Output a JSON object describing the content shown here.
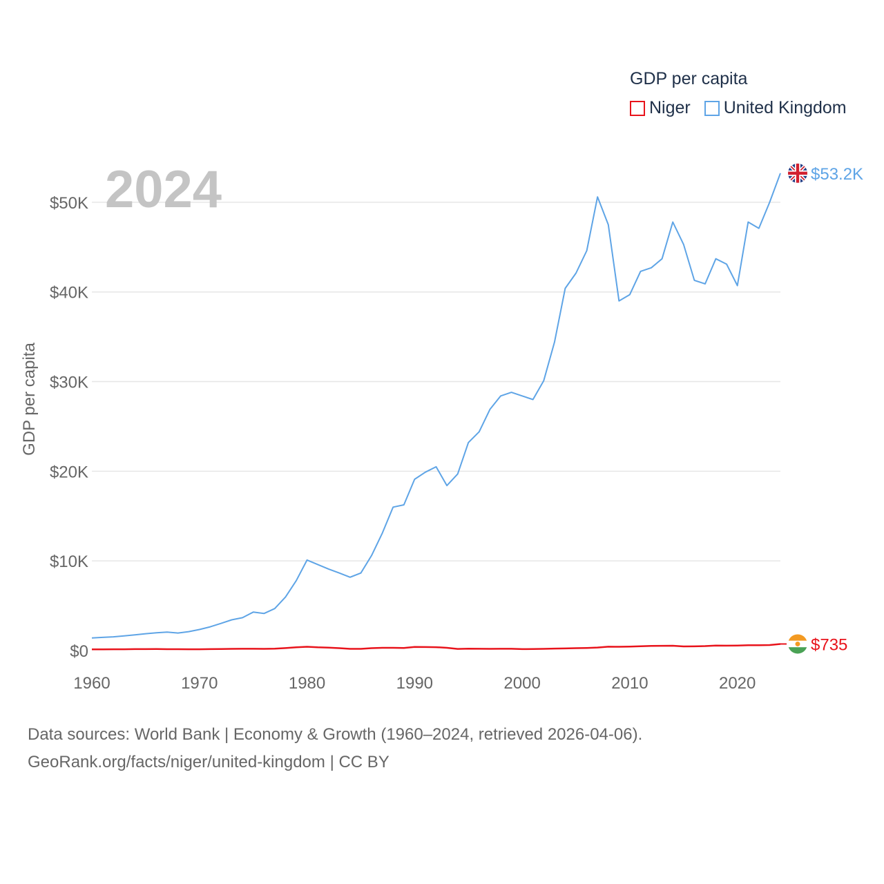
{
  "colors": {
    "niger": "#e8131b",
    "uk": "#5ea4e6",
    "grid": "#e6e6e6",
    "tick": "#666666"
  },
  "legend": {
    "title": "GDP per capita",
    "items": [
      {
        "label": "Niger",
        "color": "#e8131b"
      },
      {
        "label": "United Kingdom",
        "color": "#5ea4e6"
      }
    ]
  },
  "year_label": "2024",
  "footer": {
    "line1": "Data sources: World Bank | Economy & Growth (1960–2024, retrieved 2026-04-06).",
    "line2": "GeoRank.org/facts/niger/united-kingdom | CC BY"
  },
  "chart_data": {
    "type": "line",
    "title": "GDP per capita",
    "xlabel": "",
    "ylabel": "GDP per capita",
    "xlim": [
      1960,
      2024
    ],
    "ylim": [
      0,
      55000
    ],
    "x_ticks": [
      1960,
      1970,
      1980,
      1990,
      2000,
      2010,
      2020
    ],
    "x_tick_labels": [
      "1960",
      "1970",
      "1980",
      "1990",
      "2000",
      "2010",
      "2020"
    ],
    "y_ticks": [
      0,
      10000,
      20000,
      30000,
      40000,
      50000
    ],
    "y_tick_labels": [
      "$0",
      "$10K",
      "$20K",
      "$30K",
      "$40K",
      "$50K"
    ],
    "x": [
      1960,
      1961,
      1962,
      1963,
      1964,
      1965,
      1966,
      1967,
      1968,
      1969,
      1970,
      1971,
      1972,
      1973,
      1974,
      1975,
      1976,
      1977,
      1978,
      1979,
      1980,
      1981,
      1982,
      1983,
      1984,
      1985,
      1986,
      1987,
      1988,
      1989,
      1990,
      1991,
      1992,
      1993,
      1994,
      1995,
      1996,
      1997,
      1998,
      1999,
      2000,
      2001,
      2002,
      2003,
      2004,
      2005,
      2006,
      2007,
      2008,
      2009,
      2010,
      2011,
      2012,
      2013,
      2014,
      2015,
      2016,
      2017,
      2018,
      2019,
      2020,
      2021,
      2022,
      2023,
      2024
    ],
    "series": [
      {
        "name": "United Kingdom",
        "end_label": "$53.2K",
        "values": [
          1400,
          1470,
          1530,
          1640,
          1760,
          1880,
          1990,
          2060,
          1960,
          2110,
          2350,
          2650,
          3030,
          3430,
          3670,
          4290,
          4140,
          4680,
          5980,
          7800,
          10100,
          9600,
          9100,
          8650,
          8180,
          8650,
          10600,
          13100,
          16000,
          16250,
          19100,
          19900,
          20500,
          18400,
          19700,
          23200,
          24400,
          26900,
          28400,
          28800,
          28400,
          28000,
          30100,
          34400,
          40400,
          42100,
          44600,
          50600,
          47500,
          39000,
          39700,
          42300,
          42700,
          43700,
          47800,
          45300,
          41300,
          40900,
          43700,
          43100,
          40700,
          47800,
          47100,
          50000,
          53246
        ]
      },
      {
        "name": "Niger",
        "end_label": "$735",
        "values": [
          130,
          135,
          145,
          150,
          158,
          165,
          170,
          155,
          155,
          150,
          150,
          160,
          170,
          190,
          200,
          200,
          190,
          210,
          280,
          360,
          420,
          360,
          330,
          270,
          190,
          195,
          270,
          310,
          305,
          290,
          410,
          390,
          380,
          310,
          185,
          210,
          200,
          190,
          200,
          200,
          165,
          170,
          190,
          220,
          240,
          270,
          290,
          340,
          430,
          420,
          440,
          480,
          520,
          530,
          540,
          460,
          470,
          500,
          560,
          550,
          560,
          600,
          590,
          620,
          735
        ]
      }
    ]
  }
}
